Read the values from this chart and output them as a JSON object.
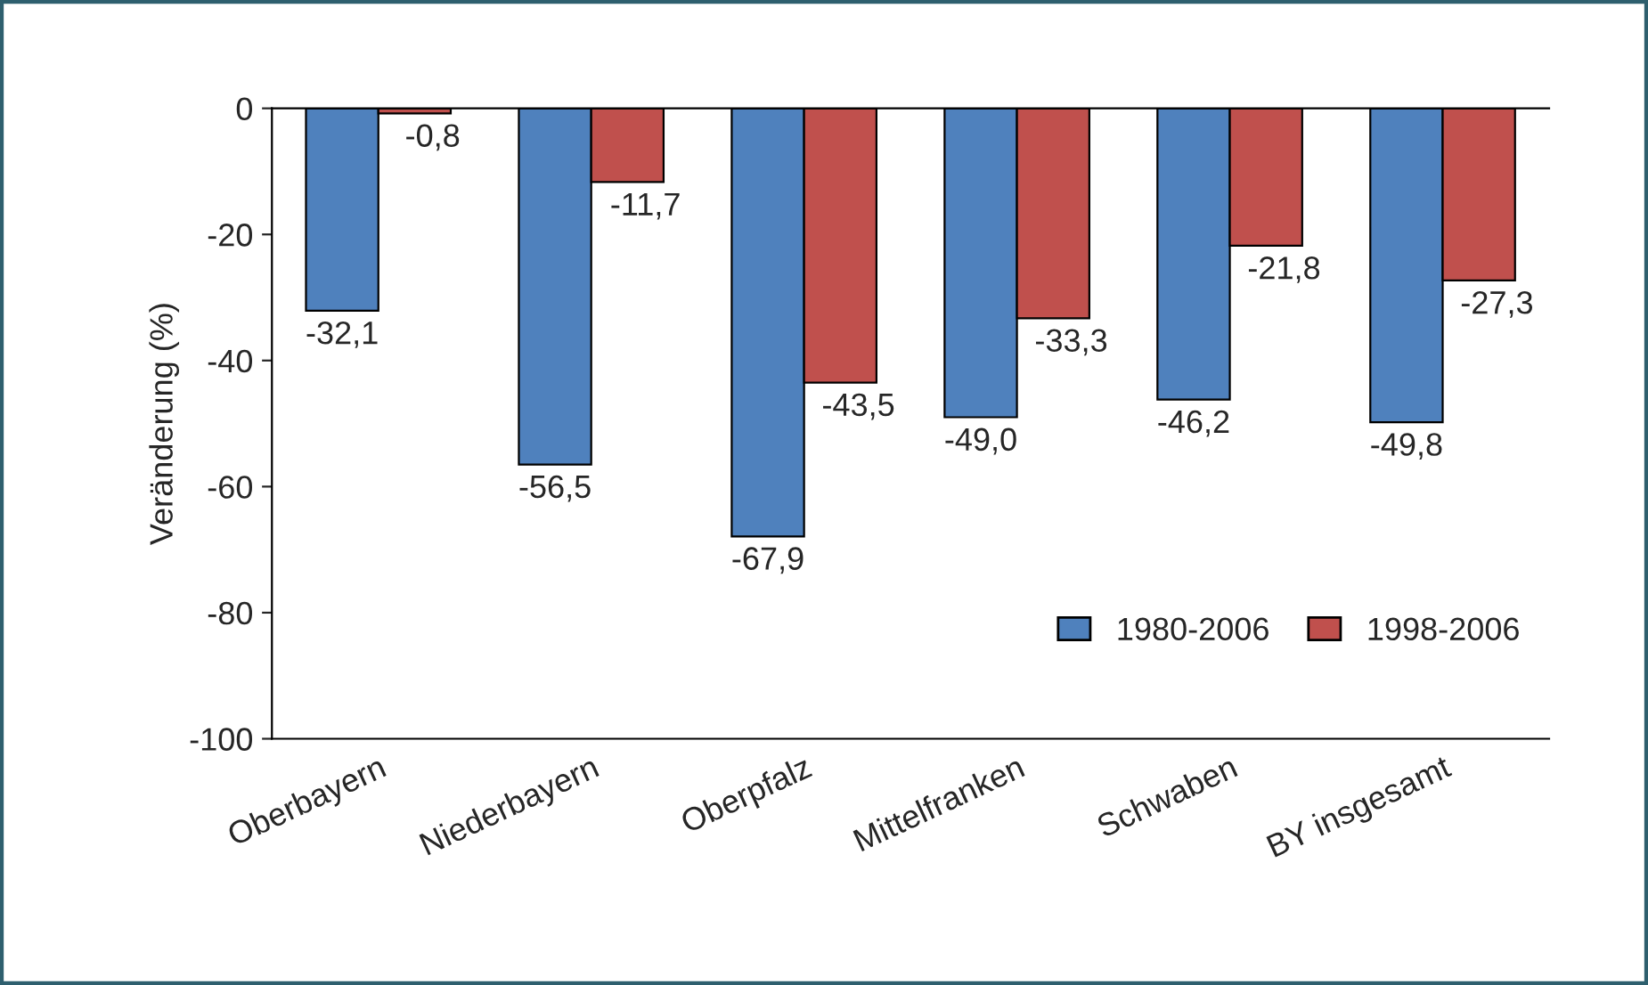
{
  "chart_data": {
    "type": "bar",
    "ylabel": "Veränderung (%)",
    "categories": [
      "Oberbayern",
      "Niederbayern",
      "Oberpfalz",
      "Mittelfranken",
      "Schwaben",
      "BY insgesamt"
    ],
    "series": [
      {
        "name": "1980-2006",
        "color": "#4f81bd",
        "values": [
          -32.1,
          -56.5,
          -67.9,
          -49.0,
          -46.2,
          -49.8
        ],
        "value_labels": [
          "-32,1",
          "-56,5",
          "-67,9",
          "-49,0",
          "-46,2",
          "-49,8"
        ]
      },
      {
        "name": "1998-2006",
        "color": "#c0504d",
        "values": [
          -0.8,
          -11.7,
          -43.5,
          -33.3,
          -21.8,
          -27.3
        ],
        "value_labels": [
          "-0,8",
          "-11,7",
          "-43,5",
          "-33,3",
          "-21,8",
          "-27,3"
        ]
      }
    ],
    "ylim": [
      -100,
      0
    ],
    "yticks": [
      -100,
      -80,
      -60,
      -40,
      -20,
      0
    ],
    "grid": false,
    "legend": "lower right"
  }
}
